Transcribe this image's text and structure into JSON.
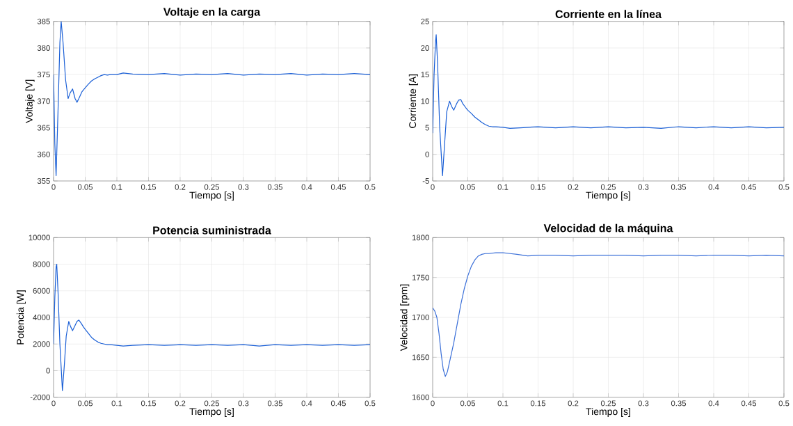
{
  "chart_data": [
    {
      "type": "line",
      "title": "Voltaje en la carga",
      "xlabel": "Tiempo [s]",
      "ylabel": "Voltaje [V]",
      "grid": true,
      "xlim": [
        0,
        0.5
      ],
      "ylim": [
        355,
        385
      ],
      "xticks": [
        0,
        0.05,
        0.1,
        0.15,
        0.2,
        0.25,
        0.3,
        0.35,
        0.4,
        0.45,
        0.5
      ],
      "yticks": [
        355,
        360,
        365,
        370,
        375,
        380,
        385
      ],
      "series": [
        {
          "color": "#1a5fd6",
          "x": [
            0,
            0.002,
            0.004,
            0.007,
            0.01,
            0.012,
            0.015,
            0.019,
            0.023,
            0.026,
            0.03,
            0.034,
            0.037,
            0.04,
            0.045,
            0.05,
            0.055,
            0.06,
            0.065,
            0.07,
            0.075,
            0.08,
            0.085,
            0.09,
            0.1,
            0.11,
            0.125,
            0.15,
            0.175,
            0.2,
            0.225,
            0.25,
            0.275,
            0.3,
            0.325,
            0.35,
            0.375,
            0.4,
            0.425,
            0.45,
            0.475,
            0.5
          ],
          "values": [
            375,
            362,
            356,
            368,
            381,
            385,
            381,
            374,
            370.5,
            371.5,
            372.3,
            370.5,
            369.8,
            370.5,
            371.8,
            372.5,
            373.2,
            373.8,
            374.2,
            374.5,
            374.8,
            375,
            374.9,
            375,
            375,
            375.3,
            375.1,
            375,
            375.2,
            374.9,
            375.1,
            375,
            375.2,
            374.9,
            375.1,
            375,
            375.2,
            374.9,
            375.1,
            375,
            375.2,
            375
          ]
        }
      ]
    },
    {
      "type": "line",
      "title": "Corriente en la línea",
      "xlabel": "Tiempo [s]",
      "ylabel": "Corriente [A]",
      "grid": true,
      "xlim": [
        0,
        0.5
      ],
      "ylim": [
        -5,
        25
      ],
      "xticks": [
        0,
        0.05,
        0.1,
        0.15,
        0.2,
        0.25,
        0.3,
        0.35,
        0.4,
        0.45,
        0.5
      ],
      "yticks": [
        -5,
        0,
        5,
        10,
        15,
        20,
        25
      ],
      "series": [
        {
          "color": "#1a5fd6",
          "x": [
            0,
            0.002,
            0.004,
            0.005,
            0.007,
            0.01,
            0.014,
            0.017,
            0.02,
            0.024,
            0.027,
            0.03,
            0.034,
            0.037,
            0.04,
            0.043,
            0.047,
            0.05,
            0.055,
            0.06,
            0.065,
            0.07,
            0.075,
            0.08,
            0.085,
            0.09,
            0.1,
            0.11,
            0.125,
            0.15,
            0.175,
            0.2,
            0.225,
            0.25,
            0.275,
            0.3,
            0.325,
            0.35,
            0.375,
            0.4,
            0.425,
            0.45,
            0.475,
            0.5
          ],
          "values": [
            4,
            15,
            21,
            22.5,
            17,
            5,
            -4,
            2,
            8,
            10,
            9,
            8.3,
            9.5,
            10.2,
            10.3,
            9.5,
            8.8,
            8.3,
            7.7,
            7,
            6.5,
            6,
            5.6,
            5.3,
            5.2,
            5.2,
            5.1,
            4.9,
            5,
            5.2,
            5,
            5.2,
            5,
            5.2,
            5,
            5.1,
            4.9,
            5.2,
            5,
            5.2,
            5,
            5.2,
            5,
            5.1
          ]
        }
      ]
    },
    {
      "type": "line",
      "title": "Potencia suministrada",
      "xlabel": "Tiempo [s]",
      "ylabel": "Potencia [W]",
      "grid": true,
      "xlim": [
        0,
        0.5
      ],
      "ylim": [
        -2000,
        10000
      ],
      "xticks": [
        0,
        0.05,
        0.1,
        0.15,
        0.2,
        0.25,
        0.3,
        0.35,
        0.4,
        0.45,
        0.5
      ],
      "yticks": [
        -2000,
        0,
        2000,
        4000,
        6000,
        8000,
        10000
      ],
      "series": [
        {
          "color": "#1a5fd6",
          "x": [
            0,
            0.002,
            0.004,
            0.005,
            0.007,
            0.01,
            0.014,
            0.017,
            0.02,
            0.024,
            0.027,
            0.03,
            0.034,
            0.037,
            0.04,
            0.043,
            0.047,
            0.05,
            0.055,
            0.06,
            0.065,
            0.07,
            0.075,
            0.08,
            0.085,
            0.09,
            0.1,
            0.11,
            0.125,
            0.15,
            0.175,
            0.2,
            0.225,
            0.25,
            0.275,
            0.3,
            0.325,
            0.35,
            0.375,
            0.4,
            0.425,
            0.45,
            0.475,
            0.5
          ],
          "values": [
            2000,
            5500,
            7800,
            8000,
            6000,
            2000,
            -1500,
            400,
            2600,
            3700,
            3300,
            3000,
            3400,
            3700,
            3800,
            3600,
            3300,
            3100,
            2800,
            2500,
            2300,
            2150,
            2050,
            2000,
            1950,
            1950,
            1900,
            1850,
            1900,
            1950,
            1900,
            1950,
            1900,
            1950,
            1900,
            1950,
            1850,
            1950,
            1900,
            1950,
            1900,
            1950,
            1900,
            1950
          ]
        }
      ]
    },
    {
      "type": "line",
      "title": "Velocidad de la máquina",
      "xlabel": "Tiempo [s]",
      "ylabel": "Velocidad [rpm]",
      "grid": true,
      "xlim": [
        0,
        0.5
      ],
      "ylim": [
        1600,
        1800
      ],
      "xticks": [
        0,
        0.05,
        0.1,
        0.15,
        0.2,
        0.25,
        0.3,
        0.35,
        0.4,
        0.45,
        0.5
      ],
      "yticks": [
        1600,
        1650,
        1700,
        1750,
        1800
      ],
      "series": [
        {
          "color": "#3a6fd8",
          "x": [
            0,
            0.003,
            0.006,
            0.009,
            0.012,
            0.015,
            0.018,
            0.021,
            0.025,
            0.03,
            0.035,
            0.04,
            0.045,
            0.05,
            0.055,
            0.06,
            0.065,
            0.07,
            0.075,
            0.08,
            0.09,
            0.1,
            0.11,
            0.12,
            0.135,
            0.15,
            0.175,
            0.2,
            0.225,
            0.25,
            0.275,
            0.3,
            0.325,
            0.35,
            0.375,
            0.4,
            0.425,
            0.45,
            0.475,
            0.5
          ],
          "values": [
            1712,
            1708,
            1700,
            1680,
            1655,
            1635,
            1626,
            1632,
            1648,
            1668,
            1692,
            1716,
            1736,
            1752,
            1764,
            1772,
            1777,
            1779,
            1780,
            1780,
            1781,
            1781,
            1780,
            1779,
            1777,
            1778,
            1778,
            1777,
            1778,
            1778,
            1778,
            1777,
            1778,
            1778,
            1777,
            1778,
            1778,
            1777,
            1778,
            1777
          ]
        }
      ]
    }
  ]
}
